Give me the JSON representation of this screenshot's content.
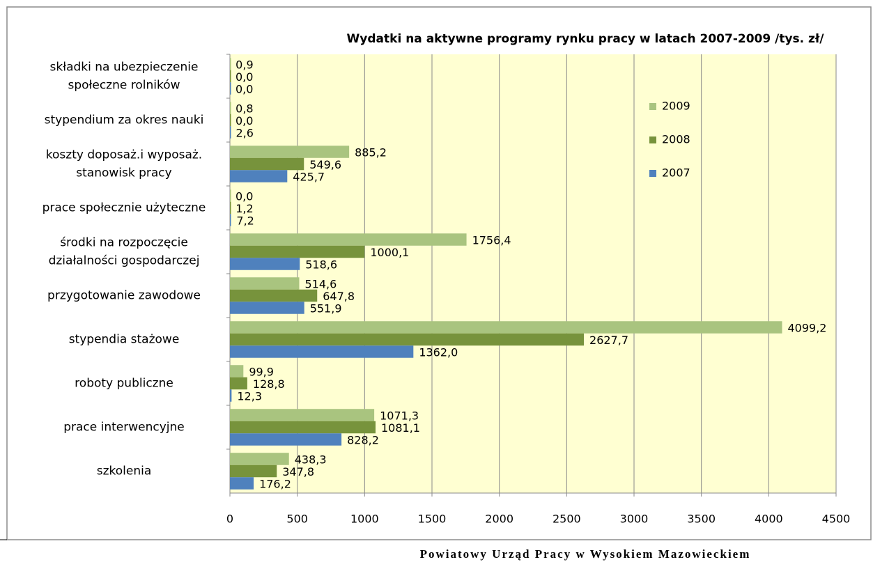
{
  "chart_data": {
    "type": "bar",
    "orientation": "horizontal",
    "title": "Wydatki  na aktywne programy rynku pracy w latach 2007-2009 /tys. zł/",
    "categories": [
      [
        "składki na ubezpieczenie",
        "społeczne rolników"
      ],
      [
        "stypendium za okres nauki"
      ],
      [
        "koszty doposaż.i wyposaż.",
        "stanowisk pracy"
      ],
      [
        "prace społecznie użyteczne"
      ],
      [
        "środki na rozpoczęcie",
        "działalności gospodarczej"
      ],
      [
        "przygotowanie zawodowe"
      ],
      [
        "stypendia stażowe"
      ],
      [
        "roboty publiczne"
      ],
      [
        "prace interwencyjne"
      ],
      [
        "szkolenia"
      ]
    ],
    "series": [
      {
        "name": "2009",
        "color": "#a9c47f",
        "values": [
          0.9,
          0.8,
          885.2,
          0.0,
          1756.4,
          514.6,
          4099.2,
          99.9,
          1071.3,
          438.3
        ],
        "value_labels": [
          "0,9",
          "0,8",
          "885,2",
          "0,0",
          "1756,4",
          "514,6",
          "4099,2",
          "99,9",
          "1071,3",
          "438,3"
        ]
      },
      {
        "name": "2008",
        "color": "#77933c",
        "values": [
          0.0,
          0.0,
          549.6,
          1.2,
          1000.1,
          647.8,
          2627.7,
          128.8,
          1081.1,
          347.8
        ],
        "value_labels": [
          "0,0",
          "0,0",
          "549,6",
          "1,2",
          "1000,1",
          "647,8",
          "2627,7",
          "128,8",
          "1081,1",
          "347,8"
        ]
      },
      {
        "name": "2007",
        "color": "#4f81bd",
        "values": [
          0.0,
          2.6,
          425.7,
          7.2,
          518.6,
          551.9,
          1362.0,
          12.3,
          828.2,
          176.2
        ],
        "value_labels": [
          "0,0",
          "2,6",
          "425,7",
          "7,2",
          "518,6",
          "551,9",
          "1362,0",
          "12,3",
          "828,2",
          "176,2"
        ]
      }
    ],
    "xlim": [
      0,
      4500
    ],
    "xticks": [
      0,
      500,
      1000,
      1500,
      2000,
      2500,
      3000,
      3500,
      4000,
      4500
    ],
    "grid": true,
    "legend": "right"
  },
  "footer": "Powiatowy Urząd Pracy w Wysokiem Mazowieckiem"
}
